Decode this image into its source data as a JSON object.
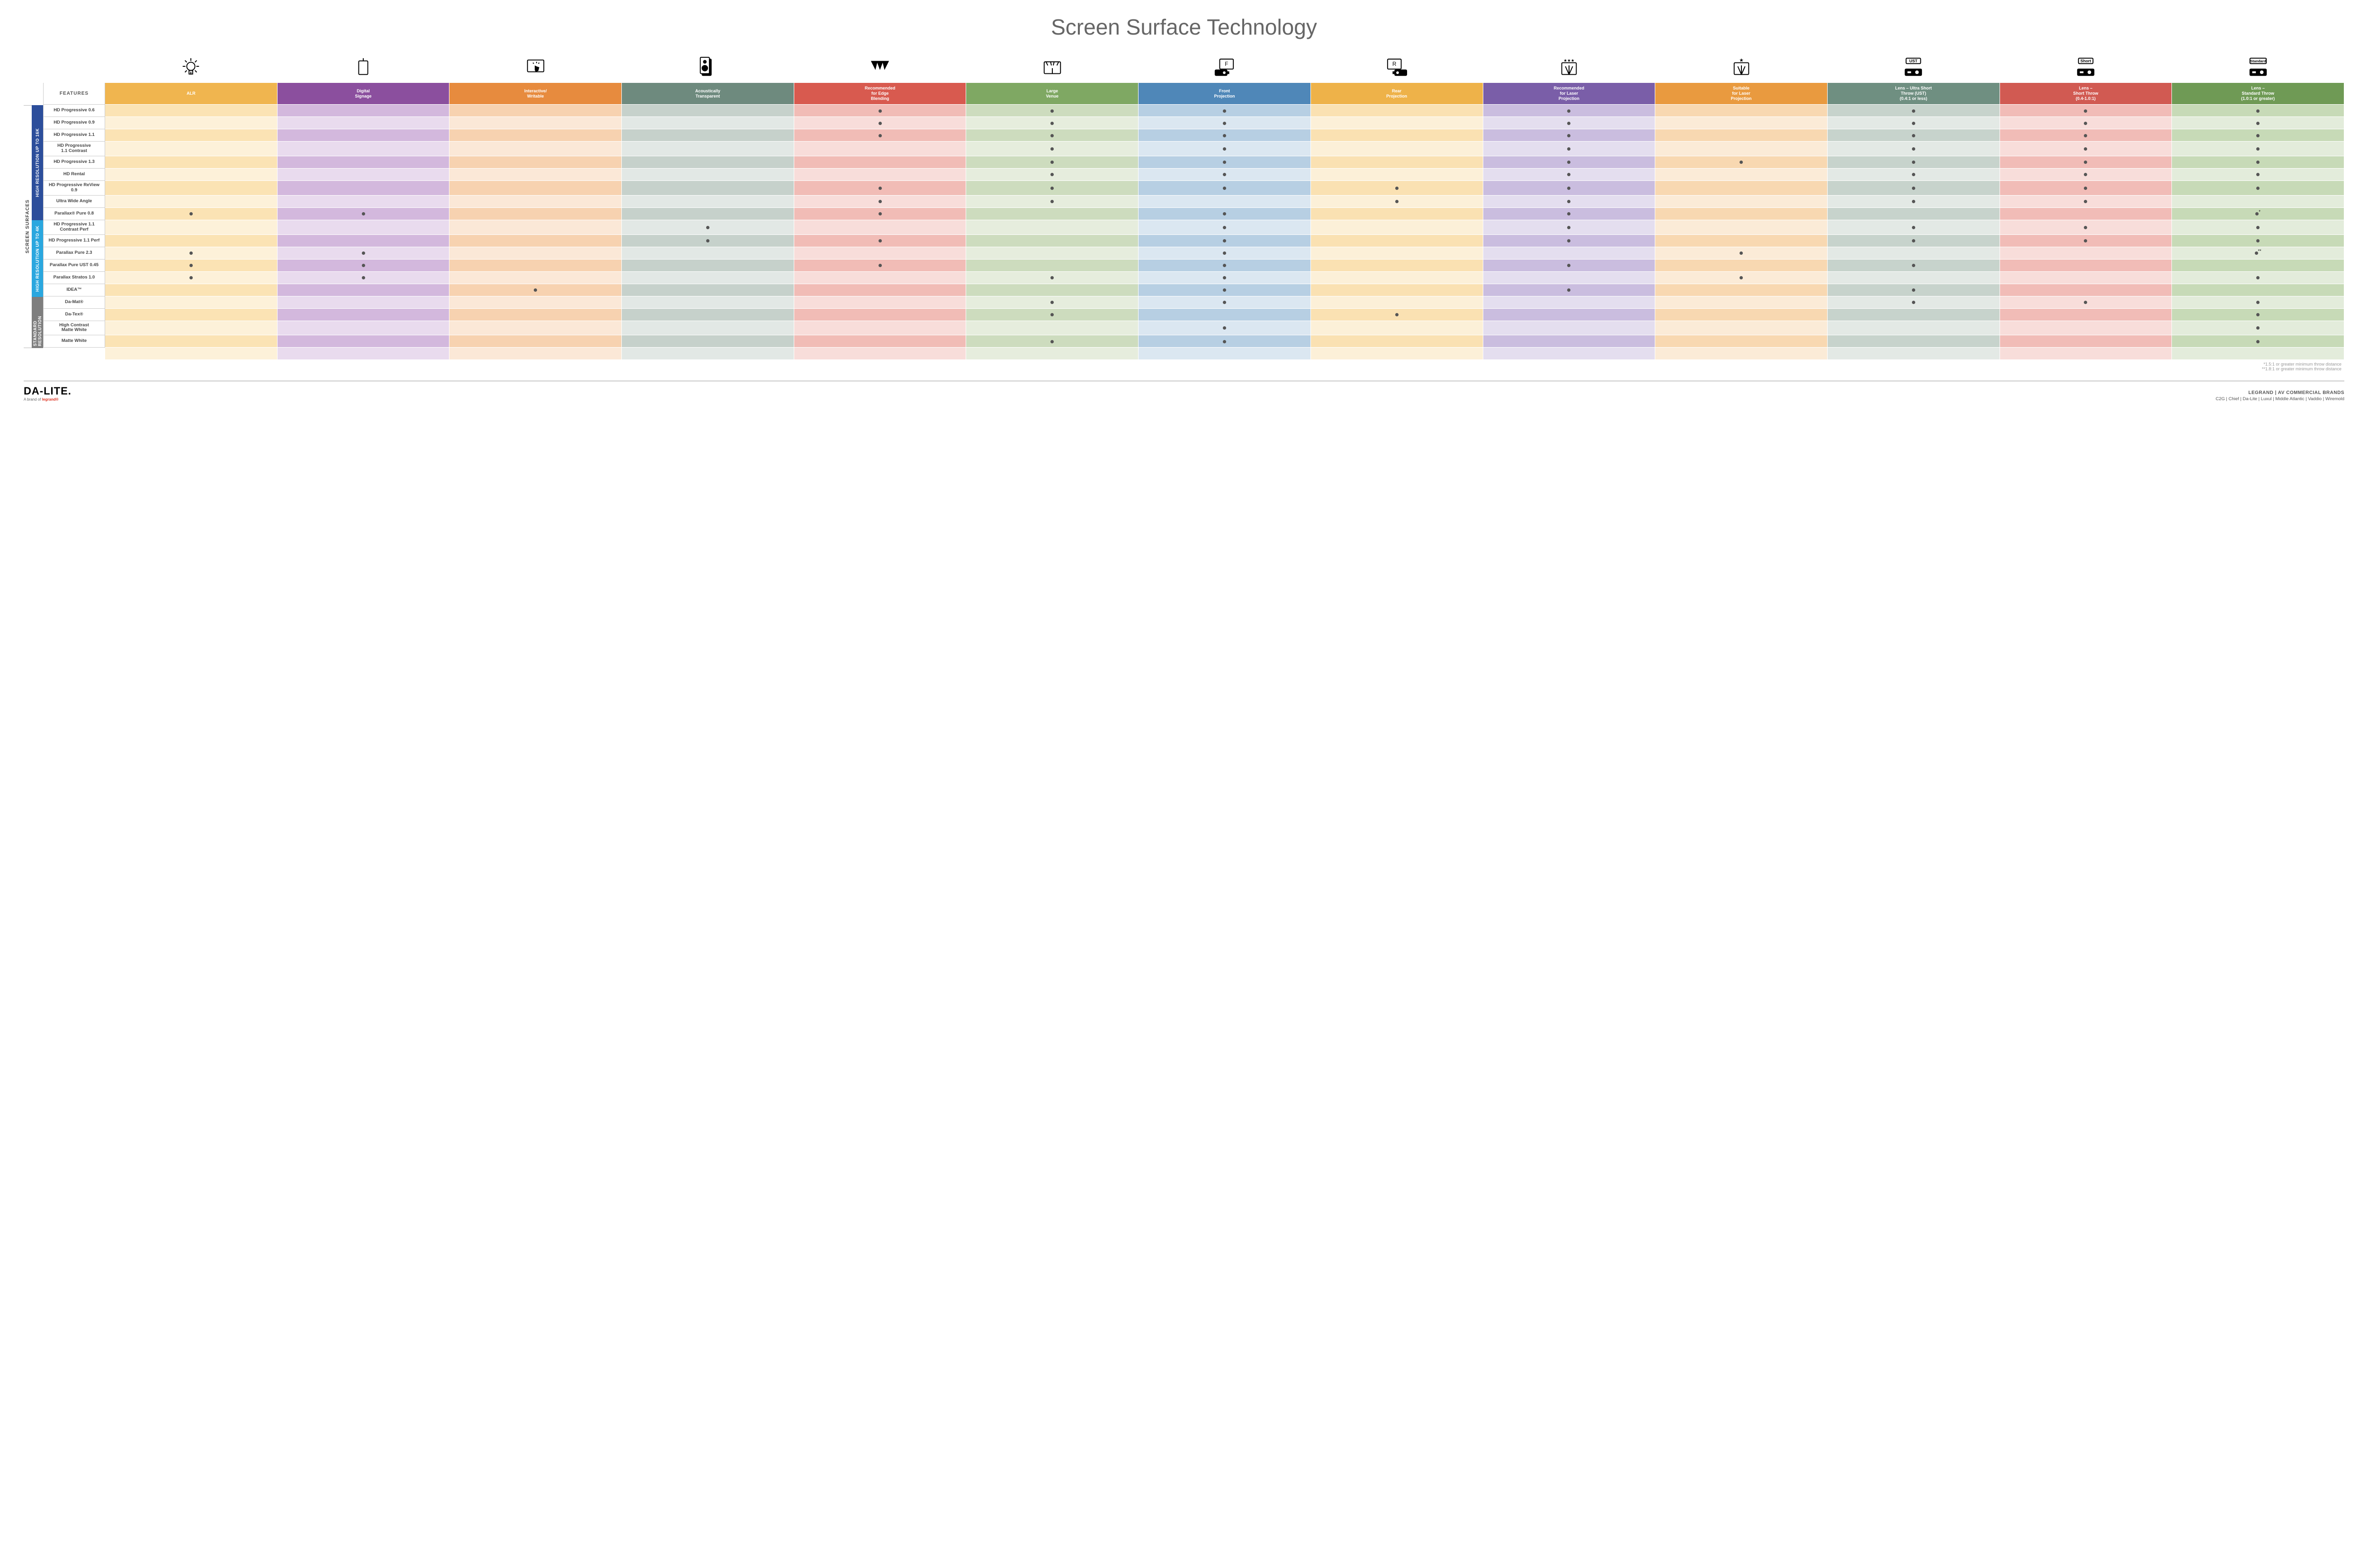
{
  "title": "Screen Surface Technology",
  "title_fontsize": 46,
  "title_color": "#666666",
  "columns": [
    {
      "key": "alr",
      "label": "ALR",
      "color": "#f0b54f",
      "icon": "bulb"
    },
    {
      "key": "signage",
      "label": "Digital\nSignage",
      "color": "#8b4f9e",
      "icon": "signage"
    },
    {
      "key": "interactive",
      "label": "Interactive/\nWritable",
      "color": "#e78b3e",
      "icon": "touch"
    },
    {
      "key": "acoustic",
      "label": "Acoustically\nTransparent",
      "color": "#6e8a7e",
      "icon": "speaker"
    },
    {
      "key": "edge",
      "label": "Recommended\nfor Edge\nBlending",
      "color": "#d85a4f",
      "icon": "blend"
    },
    {
      "key": "venue",
      "label": "Large\nVenue",
      "color": "#7fa863",
      "icon": "venue"
    },
    {
      "key": "front",
      "label": "Front\nProjection",
      "color": "#4f87b8",
      "icon": "front"
    },
    {
      "key": "rear",
      "label": "Rear\nProjection",
      "color": "#eeb249",
      "icon": "rear"
    },
    {
      "key": "reclaser",
      "label": "Recommended\nfor Laser\nProjection",
      "color": "#7a5ea8",
      "icon": "laser3"
    },
    {
      "key": "suitlaser",
      "label": "Suitable\nfor Laser\nProjection",
      "color": "#e99a3f",
      "icon": "laser1"
    },
    {
      "key": "ust",
      "label": "Lens – Ultra Short\nThrow (UST)\n(0.4:1 or less)",
      "color": "#6f8f81",
      "icon": "ust"
    },
    {
      "key": "short",
      "label": "Lens –\nShort Throw\n(0.4-1.0:1)",
      "color": "#d15a52",
      "icon": "short"
    },
    {
      "key": "std",
      "label": "Lens –\nStandard Throw\n(1.0:1 or greater)",
      "color": "#6f9a55",
      "icon": "standard"
    }
  ],
  "column_light_tints": {
    "alr": "#fbe3b4",
    "signage": "#d3b8dd",
    "interactive": "#f7d2b0",
    "acoustic": "#c6d1cb",
    "edge": "#f1bcb6",
    "venue": "#cddcbe",
    "front": "#b7cfe3",
    "rear": "#fae1b2",
    "reclaser": "#cabddf",
    "suitlaser": "#f8d8b1",
    "ust": "#c7d3cc",
    "short": "#f1bcb7",
    "std": "#c7dab7"
  },
  "column_lighter_tints": {
    "alr": "#fdf1d9",
    "signage": "#e9dbee",
    "interactive": "#fbe8d7",
    "acoustic": "#e2e8e5",
    "edge": "#f8ddda",
    "venue": "#e6eddd",
    "front": "#dbe7f1",
    "rear": "#fcf0d8",
    "reclaser": "#e4deef",
    "suitlaser": "#fbebd7",
    "ust": "#e3e9e5",
    "short": "#f8ddda",
    "std": "#e3ecdb"
  },
  "side_outer_label": "SCREEN SURFACES",
  "groups": [
    {
      "key": "g16k",
      "label": "HIGH RESOLUTION UP TO 16K",
      "color": "#2c4e9b",
      "rows": 9
    },
    {
      "key": "g4k",
      "label": "HIGH RESOLUTION UP TO 4K",
      "color": "#2aa7df",
      "rows": 6
    },
    {
      "key": "gstd",
      "label": "STANDARD\nRESOLUTION",
      "color": "#7e7e7e",
      "rows": 4
    }
  ],
  "features_header": "FEATURES",
  "rows": [
    {
      "label": "HD Progressive 0.6",
      "cells": {
        "edge": "•",
        "venue": "•",
        "front": "•",
        "reclaser": "•",
        "ust": "•",
        "short": "•",
        "std": "•"
      }
    },
    {
      "label": "HD Progressive 0.9",
      "cells": {
        "edge": "•",
        "venue": "•",
        "front": "•",
        "reclaser": "•",
        "ust": "•",
        "short": "•",
        "std": "•"
      }
    },
    {
      "label": "HD Progressive 1.1",
      "cells": {
        "edge": "•",
        "venue": "•",
        "front": "•",
        "reclaser": "•",
        "ust": "•",
        "short": "•",
        "std": "•"
      }
    },
    {
      "label": "HD Progressive\n1.1 Contrast",
      "cells": {
        "venue": "•",
        "front": "•",
        "reclaser": "•",
        "ust": "•",
        "short": "•",
        "std": "•"
      }
    },
    {
      "label": "HD Progressive 1.3",
      "cells": {
        "venue": "•",
        "front": "•",
        "reclaser": "•",
        "suitlaser": "•",
        "ust": "•",
        "short": "•",
        "std": "•"
      }
    },
    {
      "label": "HD Rental",
      "cells": {
        "venue": "•",
        "front": "•",
        "reclaser": "•",
        "ust": "•",
        "short": "•",
        "std": "•"
      }
    },
    {
      "label": "HD Progressive ReView 0.9",
      "cells": {
        "edge": "•",
        "venue": "•",
        "front": "•",
        "rear": "•",
        "reclaser": "•",
        "ust": "•",
        "short": "•",
        "std": "•"
      }
    },
    {
      "label": "Ultra Wide Angle",
      "cells": {
        "edge": "•",
        "venue": "•",
        "rear": "•",
        "reclaser": "•",
        "ust": "•",
        "short": "•"
      }
    },
    {
      "label": "Parallax® Pure 0.8",
      "cells": {
        "alr": "•",
        "signage": "•",
        "edge": "•",
        "front": "•",
        "reclaser": "•",
        "std": "•*"
      }
    },
    {
      "label": "HD Progressive 1.1\nContrast Perf",
      "cells": {
        "acoustic": "•",
        "front": "•",
        "reclaser": "•",
        "ust": "•",
        "short": "•",
        "std": "•"
      }
    },
    {
      "label": "HD Progressive 1.1 Perf",
      "cells": {
        "acoustic": "•",
        "edge": "•",
        "front": "•",
        "reclaser": "•",
        "ust": "•",
        "short": "•",
        "std": "•"
      }
    },
    {
      "label": "Parallax Pure 2.3",
      "cells": {
        "alr": "•",
        "signage": "•",
        "front": "•",
        "suitlaser": "•",
        "std": "•**"
      }
    },
    {
      "label": "Parallax Pure UST 0.45",
      "cells": {
        "alr": "•",
        "signage": "•",
        "edge": "•",
        "front": "•",
        "reclaser": "•",
        "ust": "•"
      }
    },
    {
      "label": "Parallax Stratos 1.0",
      "cells": {
        "alr": "•",
        "signage": "•",
        "venue": "•",
        "front": "•",
        "suitlaser": "•",
        "std": "•"
      }
    },
    {
      "label": "IDEA™",
      "cells": {
        "interactive": "•",
        "front": "•",
        "reclaser": "•",
        "ust": "•"
      }
    },
    {
      "label": "Da-Mat®",
      "cells": {
        "venue": "•",
        "front": "•",
        "ust": "•",
        "short": "•",
        "std": "•"
      }
    },
    {
      "label": "Da-Tex®",
      "cells": {
        "venue": "•",
        "rear": "•",
        "std": "•"
      }
    },
    {
      "label": "High Contrast\nMatte White",
      "cells": {
        "front": "•",
        "std": "•"
      }
    },
    {
      "label": "Matte White",
      "cells": {
        "venue": "•",
        "front": "•",
        "std": "•"
      }
    }
  ],
  "footnotes": [
    "*1.5:1 or greater minimum throw distance",
    "**1.8:1 or greater minimum throw distance"
  ],
  "footer": {
    "logo": "DA-LITE.",
    "logo_sub_prefix": "A brand of ",
    "logo_sub_brand": "legrand®",
    "brands_title": "LEGRAND | AV COMMERCIAL BRANDS",
    "brands_list": "C2G  |  Chief  |  Da-Lite  |  Luxul  |  Middle Atlantic  |  Vaddio  |  Wiremold"
  }
}
